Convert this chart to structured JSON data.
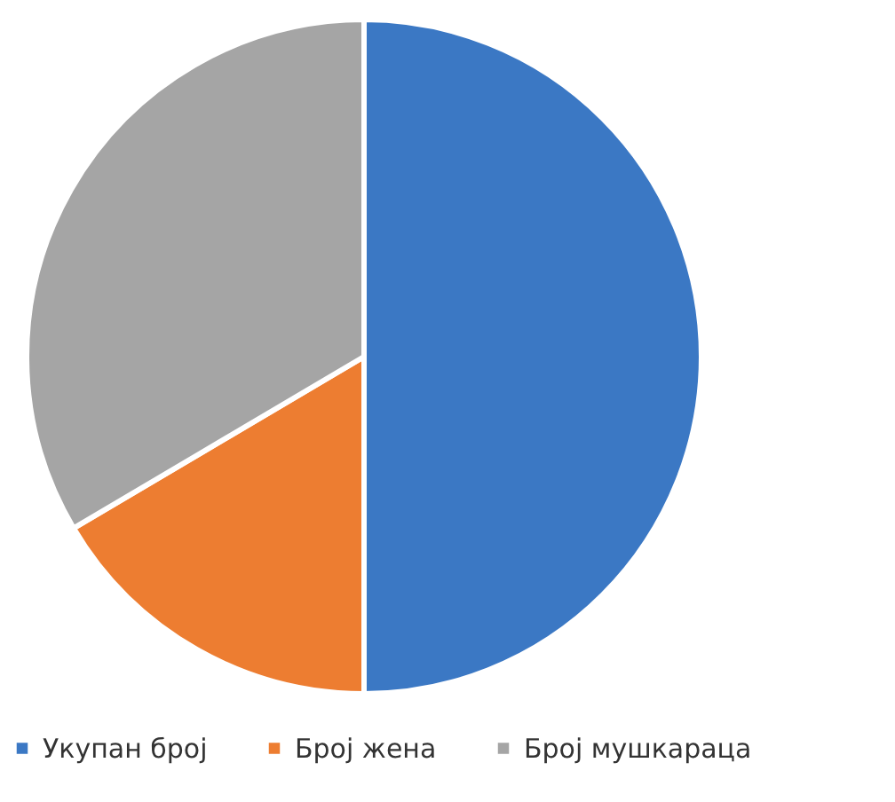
{
  "chart_data": {
    "type": "pie",
    "categories": [
      "Укупан број",
      "Број жена",
      "Број мушкараца"
    ],
    "values": [
      50,
      16.5,
      33.5
    ],
    "colors": [
      "#3b78c4",
      "#ed7d31",
      "#a5a5a5"
    ],
    "legend": "bottom"
  }
}
